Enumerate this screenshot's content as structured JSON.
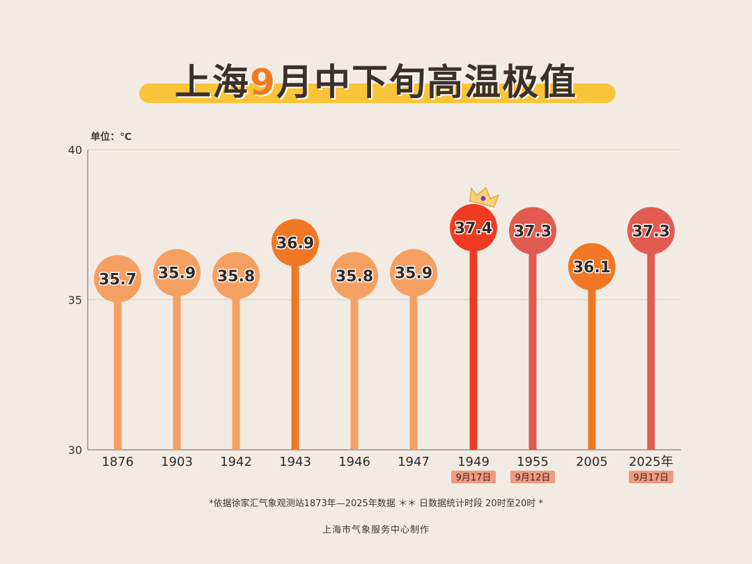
{
  "title": {
    "prefix": "上海",
    "accent": "9",
    "suffix": "月中下旬高温极值"
  },
  "unit": "单位：℃",
  "chart_data": {
    "type": "lollipop",
    "categories": [
      "1876",
      "1903",
      "1942",
      "1943",
      "1946",
      "1947",
      "1949",
      "1955",
      "2005",
      "2025年"
    ],
    "values": [
      35.7,
      35.9,
      35.8,
      36.9,
      35.8,
      35.9,
      37.4,
      37.3,
      36.1,
      37.3
    ],
    "value_labels": [
      "35.7",
      "35.9",
      "35.8",
      "36.9",
      "35.8",
      "35.9",
      "37.4",
      "37.3",
      "36.1",
      "37.3"
    ],
    "dates": [
      "",
      "",
      "",
      "",
      "",
      "",
      "9月17日",
      "9月12日",
      "",
      "9月17日"
    ],
    "ylim": [
      30,
      40
    ],
    "yticks": [
      30,
      35,
      40
    ],
    "grid": true,
    "colors": [
      "#f5a063",
      "#f5a063",
      "#f5a063",
      "#f07825",
      "#f5a063",
      "#f5a063",
      "#ee3b22",
      "#e25b50",
      "#f07825",
      "#e25b50"
    ],
    "highlight_index": 6,
    "date_badge_color": "#f09a7f"
  },
  "footnote": "*依据徐家汇气象观测站1873年—2025年数据 ＊＊ 日数据统计时段 20时至20时 *",
  "credit": "上海市气象服务中心制作"
}
